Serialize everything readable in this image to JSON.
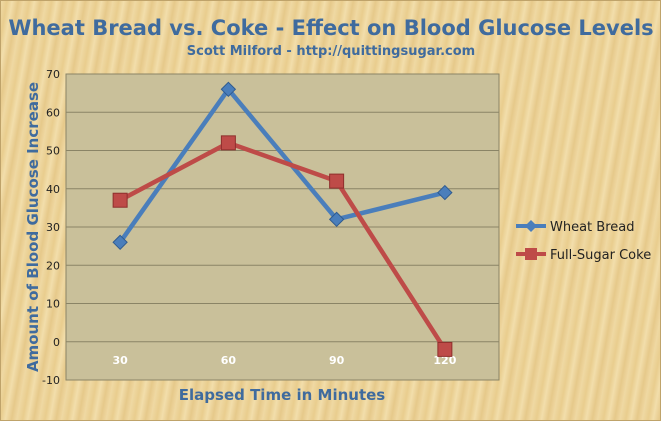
{
  "chart_data": {
    "type": "line",
    "title": "Wheat Bread vs. Coke - Effect on Blood Glucose Levels",
    "subtitle": "Scott Milford - http://quittingsugar.com",
    "xlabel": "Elapsed Time in Minutes",
    "ylabel": "Amount of Blood Glucose Increase",
    "categories": [
      "30",
      "60",
      "90",
      "120"
    ],
    "ylim": [
      -10,
      70
    ],
    "yticks": [
      -10,
      0,
      10,
      20,
      30,
      40,
      50,
      60,
      70
    ],
    "grid": true,
    "legend_position": "right",
    "series": [
      {
        "name": "Wheat Bread",
        "values": [
          26,
          66,
          32,
          39
        ],
        "color": "#4a7ebb",
        "marker": "diamond"
      },
      {
        "name": "Full-Sugar Coke",
        "values": [
          37,
          52,
          42,
          -2
        ],
        "color": "#be4b48",
        "marker": "square"
      }
    ]
  }
}
